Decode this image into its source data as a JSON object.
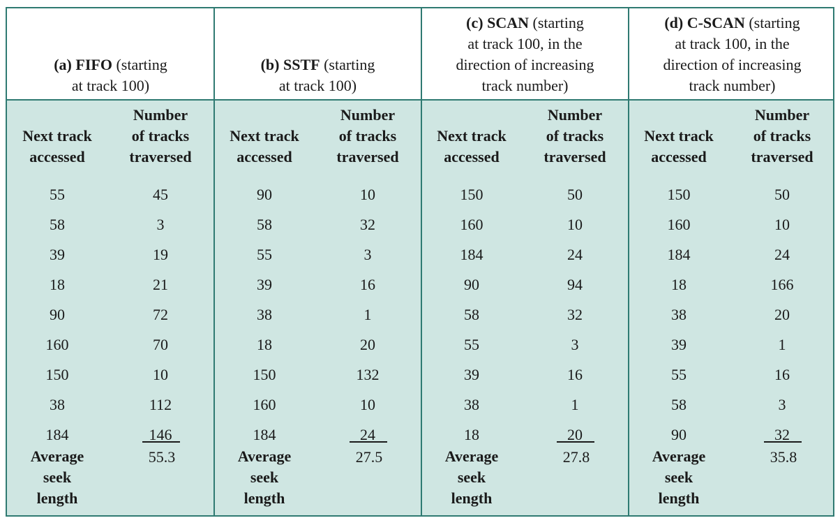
{
  "sections": [
    {
      "label_bold": "(a) FIFO",
      "label_rest_line1": " (starting",
      "label_lines": [
        "at track 100)"
      ],
      "col1": "Next track accessed",
      "col2": "Number of tracks traversed",
      "next": [
        "55",
        "58",
        "39",
        "18",
        "90",
        "160",
        "150",
        "38",
        "184"
      ],
      "traversed": [
        "45",
        "3",
        "19",
        "21",
        "72",
        "70",
        "10",
        "112",
        "146"
      ],
      "average_label": "Average seek length",
      "average": "55.3"
    },
    {
      "label_bold": "(b) SSTF",
      "label_rest_line1": " (starting",
      "label_lines": [
        "at track 100)"
      ],
      "col1": "Next track accessed",
      "col2": "Number of tracks traversed",
      "next": [
        "90",
        "58",
        "55",
        "39",
        "38",
        "18",
        "150",
        "160",
        "184"
      ],
      "traversed": [
        "10",
        "32",
        "3",
        "16",
        "1",
        "20",
        "132",
        "10",
        "24"
      ],
      "average_label": "Average seek length",
      "average": "27.5"
    },
    {
      "label_bold": "(c) SCAN",
      "label_rest_line1": " (starting",
      "label_lines": [
        "at track 100, in the",
        "direction of increasing",
        "track number)"
      ],
      "col1": "Next track accessed",
      "col2": "Number of tracks traversed",
      "next": [
        "150",
        "160",
        "184",
        "90",
        "58",
        "55",
        "39",
        "38",
        "18"
      ],
      "traversed": [
        "50",
        "10",
        "24",
        "94",
        "32",
        "3",
        "16",
        "1",
        "20"
      ],
      "average_label": "Average seek length",
      "average": "27.8"
    },
    {
      "label_bold": "(d) C-SCAN",
      "label_rest_line1": " (starting",
      "label_lines": [
        "at track 100, in the",
        "direction of increasing",
        "track number)"
      ],
      "col1": "Next track accessed",
      "col2": "Number of tracks traversed",
      "next": [
        "150",
        "160",
        "184",
        "18",
        "38",
        "39",
        "55",
        "58",
        "90"
      ],
      "traversed": [
        "50",
        "10",
        "24",
        "166",
        "20",
        "1",
        "16",
        "3",
        "32"
      ],
      "average_label": "Average seek length",
      "average": "35.8"
    }
  ]
}
